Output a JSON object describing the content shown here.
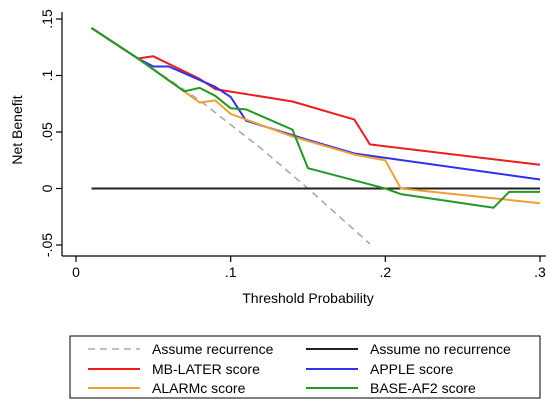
{
  "chart_data": {
    "type": "line",
    "xlabel": "Threshold Probability",
    "ylabel": "Net Benefit",
    "xlim": [
      0,
      0.3
    ],
    "ylim": [
      -0.05,
      0.15
    ],
    "x_ticks": [
      {
        "value": 0,
        "label": "0"
      },
      {
        "value": 0.1,
        "label": ".1"
      },
      {
        "value": 0.2,
        "label": ".2"
      },
      {
        "value": 0.3,
        "label": ".3"
      }
    ],
    "y_ticks": [
      {
        "value": -0.05,
        "label": "-.05"
      },
      {
        "value": 0,
        "label": "0"
      },
      {
        "value": 0.05,
        "label": ".05"
      },
      {
        "value": 0.1,
        "label": ".1"
      },
      {
        "value": 0.15,
        "label": ".15"
      }
    ],
    "grid": false,
    "legend_position": "bottom",
    "series": [
      {
        "name": "Assume recurrence",
        "color": "#aaaaaa",
        "dash": true,
        "points": [
          [
            0.01,
            0.142
          ],
          [
            0.04,
            0.115
          ],
          [
            0.08,
            0.078
          ],
          [
            0.12,
            0.035
          ],
          [
            0.15,
            0.0
          ],
          [
            0.19,
            -0.049
          ]
        ]
      },
      {
        "name": "Assume no recurrence",
        "color": "#222222",
        "dash": false,
        "points": [
          [
            0.01,
            0.0
          ],
          [
            0.3,
            0.0
          ]
        ]
      },
      {
        "name": "MB-LATER score",
        "color": "#ee1c1c",
        "dash": false,
        "points": [
          [
            0.01,
            0.142
          ],
          [
            0.04,
            0.115
          ],
          [
            0.05,
            0.117
          ],
          [
            0.08,
            0.097
          ],
          [
            0.09,
            0.088
          ],
          [
            0.14,
            0.077
          ],
          [
            0.18,
            0.061
          ],
          [
            0.19,
            0.039
          ],
          [
            0.3,
            0.021
          ]
        ]
      },
      {
        "name": "APPLE score",
        "color": "#3030ee",
        "dash": false,
        "points": [
          [
            0.01,
            0.142
          ],
          [
            0.04,
            0.115
          ],
          [
            0.05,
            0.108
          ],
          [
            0.06,
            0.108
          ],
          [
            0.09,
            0.09
          ],
          [
            0.1,
            0.081
          ],
          [
            0.11,
            0.06
          ],
          [
            0.15,
            0.043
          ],
          [
            0.18,
            0.031
          ],
          [
            0.3,
            0.008
          ]
        ]
      },
      {
        "name": "ALARMc score",
        "color": "#f0a030",
        "dash": false,
        "points": [
          [
            0.01,
            0.142
          ],
          [
            0.04,
            0.115
          ],
          [
            0.08,
            0.076
          ],
          [
            0.09,
            0.078
          ],
          [
            0.1,
            0.066
          ],
          [
            0.14,
            0.046
          ],
          [
            0.18,
            0.03
          ],
          [
            0.2,
            0.025
          ],
          [
            0.21,
            0.0
          ],
          [
            0.3,
            -0.013
          ]
        ]
      },
      {
        "name": "BASE-AF2 score",
        "color": "#229922",
        "dash": false,
        "points": [
          [
            0.01,
            0.142
          ],
          [
            0.04,
            0.115
          ],
          [
            0.07,
            0.086
          ],
          [
            0.08,
            0.089
          ],
          [
            0.09,
            0.082
          ],
          [
            0.1,
            0.071
          ],
          [
            0.11,
            0.07
          ],
          [
            0.14,
            0.052
          ],
          [
            0.15,
            0.018
          ],
          [
            0.2,
            0.0
          ],
          [
            0.21,
            -0.005
          ],
          [
            0.27,
            -0.017
          ],
          [
            0.28,
            -0.003
          ],
          [
            0.3,
            -0.003
          ]
        ]
      }
    ]
  }
}
